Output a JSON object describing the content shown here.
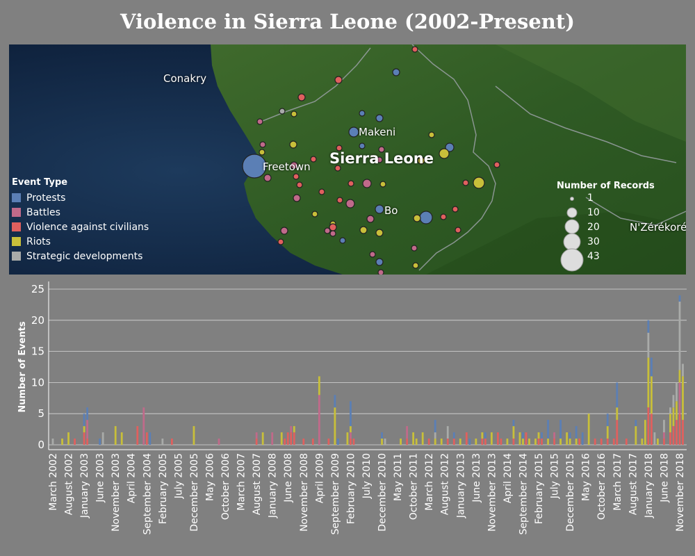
{
  "title": "Violence in Sierra Leone (2002-Present)",
  "map": {
    "labels": {
      "conakry": "Conakry",
      "freetown": "Freetown",
      "country": "Sierra Leone",
      "makeni": "Makeni",
      "bo": "Bo",
      "nzerekore": "N'Zérékoré"
    },
    "legend_title": "Event Type",
    "event_types": [
      {
        "name": "Protests",
        "color": "#5b7fb5"
      },
      {
        "name": "Battles",
        "color": "#c06a8a"
      },
      {
        "name": "Violence against civilians",
        "color": "#e0605e"
      },
      {
        "name": "Riots",
        "color": "#c8bf3a"
      },
      {
        "name": "Strategic developments",
        "color": "#a9aba9"
      }
    ],
    "size_legend_title": "Number of Records",
    "size_legend_values": [
      1,
      10,
      20,
      30,
      43
    ]
  },
  "chart_data": {
    "type": "bar",
    "stacked": true,
    "ylabel": "Number of Events",
    "ylim": [
      0,
      26
    ],
    "yticks": [
      0,
      5,
      10,
      15,
      20,
      25
    ],
    "x_tick_labels": [
      "March 2002",
      "August 2002",
      "January 2003",
      "June 2003",
      "November 2003",
      "April 2004",
      "September 2004",
      "February 2005",
      "July 2005",
      "December 2005",
      "May 2006",
      "October 2006",
      "March 2007",
      "August 2007",
      "January 2008",
      "June 2008",
      "November 2008",
      "April 2009",
      "September 2009",
      "February 2010",
      "July 2010",
      "December 2010",
      "May 2011",
      "October 2011",
      "March 2012",
      "August 2012",
      "January 2013",
      "June 2013",
      "November 2013",
      "April 2014",
      "September 2014",
      "February 2015",
      "July 2015",
      "December 2015",
      "May 2016",
      "October 2016",
      "March 2017",
      "August 2017",
      "January 2018",
      "June 2018",
      "November 2018"
    ],
    "series_order": [
      "Violence against civilians",
      "Battles",
      "Riots",
      "Strategic developments",
      "Protests"
    ],
    "months": [
      {
        "month": "2002-03",
        "Strategic developments": 1
      },
      {
        "month": "2002-06",
        "Riots": 1
      },
      {
        "month": "2002-08",
        "Riots": 2
      },
      {
        "month": "2002-10",
        "Violence against civilians": 1
      },
      {
        "month": "2003-01",
        "Violence against civilians": 2,
        "Riots": 1,
        "Protests": 2
      },
      {
        "month": "2003-02",
        "Battles": 3,
        "Violence against civilians": 1,
        "Protests": 2
      },
      {
        "month": "2003-06",
        "Protests": 1
      },
      {
        "month": "2003-07",
        "Strategic developments": 2
      },
      {
        "month": "2003-11",
        "Riots": 3
      },
      {
        "month": "2004-01",
        "Riots": 2
      },
      {
        "month": "2004-06",
        "Violence against civilians": 3
      },
      {
        "month": "2004-08",
        "Battles": 6
      },
      {
        "month": "2004-09",
        "Violence against civilians": 2
      },
      {
        "month": "2004-10",
        "Protests": 2
      },
      {
        "month": "2005-02",
        "Strategic developments": 1
      },
      {
        "month": "2005-05",
        "Violence against civilians": 1
      },
      {
        "month": "2005-12",
        "Riots": 3
      },
      {
        "month": "2006-08",
        "Battles": 1
      },
      {
        "month": "2007-08",
        "Violence against civilians": 1,
        "Battles": 1
      },
      {
        "month": "2007-10",
        "Riots": 2
      },
      {
        "month": "2008-01",
        "Battles": 2
      },
      {
        "month": "2008-04",
        "Riots": 2
      },
      {
        "month": "2008-05",
        "Violence against civilians": 1
      },
      {
        "month": "2008-06",
        "Violence against civilians": 2
      },
      {
        "month": "2008-07",
        "Violence against civilians": 2,
        "Battles": 1
      },
      {
        "month": "2008-08",
        "Violence against civilians": 2,
        "Riots": 1
      },
      {
        "month": "2008-11",
        "Violence against civilians": 1
      },
      {
        "month": "2009-02",
        "Violence against civilians": 1
      },
      {
        "month": "2009-04",
        "Battles": 8,
        "Riots": 3
      },
      {
        "month": "2009-07",
        "Violence against civilians": 1
      },
      {
        "month": "2009-09",
        "Riots": 6,
        "Protests": 2
      },
      {
        "month": "2009-10",
        "Protests": 1
      },
      {
        "month": "2010-01",
        "Riots": 2
      },
      {
        "month": "2010-02",
        "Violence against civilians": 1,
        "Battles": 1,
        "Riots": 1,
        "Protests": 4
      },
      {
        "month": "2010-03",
        "Violence against civilians": 1
      },
      {
        "month": "2010-12",
        "Riots": 1,
        "Protests": 1
      },
      {
        "month": "2011-01",
        "Strategic developments": 1
      },
      {
        "month": "2011-06",
        "Riots": 1
      },
      {
        "month": "2011-08",
        "Battles": 2,
        "Violence against civilians": 1
      },
      {
        "month": "2011-10",
        "Riots": 2
      },
      {
        "month": "2011-11",
        "Riots": 1
      },
      {
        "month": "2012-01",
        "Riots": 2
      },
      {
        "month": "2012-03",
        "Violence against civilians": 1
      },
      {
        "month": "2012-05",
        "Riots": 1,
        "Protests": 2,
        "Strategic developments": 1
      },
      {
        "month": "2012-07",
        "Riots": 1
      },
      {
        "month": "2012-09",
        "Violence against civilians": 1,
        "Strategic developments": 2
      },
      {
        "month": "2012-11",
        "Violence against civilians": 1,
        "Protests": 1
      },
      {
        "month": "2013-01",
        "Riots": 1
      },
      {
        "month": "2013-03",
        "Violence against civilians": 2
      },
      {
        "month": "2013-04",
        "Protests": 1
      },
      {
        "month": "2013-06",
        "Riots": 1
      },
      {
        "month": "2013-08",
        "Violence against civilians": 1,
        "Riots": 1
      },
      {
        "month": "2013-09",
        "Violence against civilians": 1,
        "Protests": 1
      },
      {
        "month": "2013-11",
        "Riots": 2
      },
      {
        "month": "2014-01",
        "Violence against civilians": 2
      },
      {
        "month": "2014-02",
        "Violence against civilians": 1
      },
      {
        "month": "2014-04",
        "Riots": 1
      },
      {
        "month": "2014-06",
        "Violence against civilians": 1,
        "Riots": 2,
        "Protests": 1
      },
      {
        "month": "2014-08",
        "Riots": 2
      },
      {
        "month": "2014-09",
        "Riots": 1,
        "Protests": 1
      },
      {
        "month": "2014-10",
        "Violence against civilians": 2
      },
      {
        "month": "2014-11",
        "Riots": 1
      },
      {
        "month": "2015-01",
        "Riots": 1
      },
      {
        "month": "2015-02",
        "Violence against civilians": 1,
        "Riots": 1
      },
      {
        "month": "2015-03",
        "Violence against civilians": 1,
        "Protests": 1
      },
      {
        "month": "2015-05",
        "Riots": 1,
        "Protests": 3
      },
      {
        "month": "2015-07",
        "Violence against civilians": 1,
        "Battles": 1
      },
      {
        "month": "2015-09",
        "Riots": 1,
        "Protests": 3
      },
      {
        "month": "2015-11",
        "Riots": 2
      },
      {
        "month": "2015-12",
        "Riots": 1,
        "Protests": 1
      },
      {
        "month": "2016-02",
        "Riots": 1,
        "Protests": 2
      },
      {
        "month": "2016-03",
        "Violence against civilians": 1
      },
      {
        "month": "2016-04",
        "Protests": 2
      },
      {
        "month": "2016-06",
        "Riots": 5
      },
      {
        "month": "2016-08",
        "Violence against civilians": 1
      },
      {
        "month": "2016-10",
        "Violence against civilians": 1
      },
      {
        "month": "2016-12",
        "Violence against civilians": 1,
        "Riots": 2,
        "Protests": 2
      },
      {
        "month": "2017-02",
        "Violence against civilians": 1
      },
      {
        "month": "2017-03",
        "Violence against civilians": 4,
        "Riots": 2,
        "Protests": 4
      },
      {
        "month": "2017-06",
        "Violence against civilians": 1
      },
      {
        "month": "2017-09",
        "Riots": 3,
        "Protests": 1
      },
      {
        "month": "2017-11",
        "Riots": 1
      },
      {
        "month": "2017-12",
        "Riots": 4
      },
      {
        "month": "2018-01",
        "Violence against civilians": 6,
        "Riots": 8,
        "Strategic developments": 4,
        "Protests": 2
      },
      {
        "month": "2018-02",
        "Violence against civilians": 5,
        "Riots": 6,
        "Protests": 3
      },
      {
        "month": "2018-03",
        "Strategic developments": 2
      },
      {
        "month": "2018-04",
        "Riots": 1
      },
      {
        "month": "2018-06",
        "Violence against civilians": 1,
        "Battles": 1,
        "Strategic developments": 2
      },
      {
        "month": "2018-08",
        "Violence against civilians": 2,
        "Riots": 3,
        "Strategic developments": 1
      },
      {
        "month": "2018-09",
        "Violence against civilians": 3,
        "Riots": 3,
        "Strategic developments": 2
      },
      {
        "month": "2018-10",
        "Violence against civilians": 4,
        "Riots": 3,
        "Strategic developments": 3
      },
      {
        "month": "2018-11",
        "Violence against civilians": 5,
        "Battles": 5,
        "Riots": 2,
        "Protests": 1,
        "Strategic developments": 11
      },
      {
        "month": "2018-12",
        "Violence against civilians": 4,
        "Riots": 7,
        "Strategic developments": 2
      }
    ]
  }
}
